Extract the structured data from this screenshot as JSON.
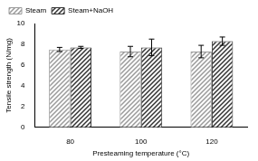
{
  "chart_data": {
    "type": "bar",
    "x_label": "Presteaming temperature (°C)",
    "y_label": "Tensile strength (N/mg)",
    "categories": [
      "80",
      "100",
      "120"
    ],
    "series": [
      {
        "name": "Steam",
        "color": "#9a9a9a",
        "values": [
          7.5,
          7.3,
          7.3
        ],
        "errors": [
          0.2,
          0.5,
          0.6
        ]
      },
      {
        "name": "Steam+NaOH",
        "color": "#333333",
        "values": [
          7.7,
          7.7,
          8.3
        ],
        "errors": [
          0.1,
          0.8,
          0.4
        ]
      }
    ],
    "ylim": [
      0,
      10
    ],
    "yticks": [
      0,
      2,
      4,
      6,
      8,
      10
    ],
    "grid": false,
    "legend": "upper left"
  }
}
